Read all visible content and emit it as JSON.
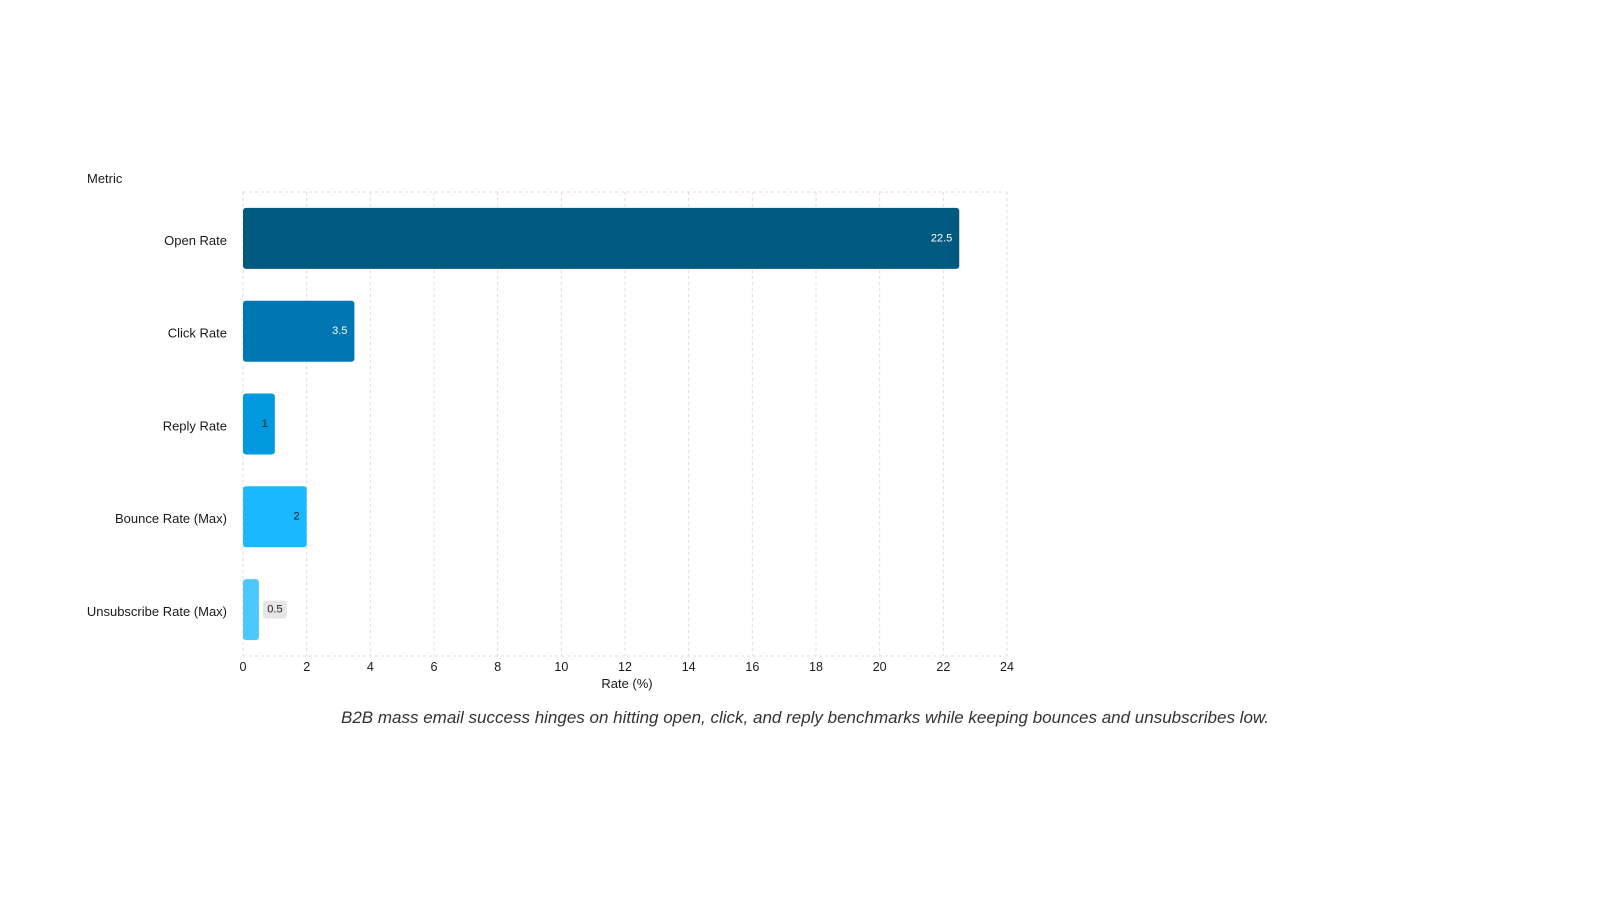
{
  "chart_data": {
    "type": "bar",
    "orientation": "horizontal",
    "categories": [
      "Open Rate",
      "Click Rate",
      "Reply Rate",
      "Bounce Rate (Max)",
      "Unsubscribe Rate (Max)"
    ],
    "values": [
      22.5,
      3.5,
      1,
      2,
      0.5
    ],
    "value_labels": [
      "22.5",
      "3.5",
      "1",
      "2",
      "0.5"
    ],
    "bar_colors": [
      "#005a80",
      "#0077b3",
      "#0099dd",
      "#1ab8ff",
      "#4dc8ff"
    ],
    "label_colors": [
      "#ffffff",
      "#ffffff",
      "#1a1a1a",
      "#1a1a1a",
      "#1a1a1a"
    ],
    "xlabel": "Rate (%)",
    "ylabel": "Metric",
    "xlim": [
      0,
      24
    ],
    "xticks": [
      0,
      2,
      4,
      6,
      8,
      10,
      12,
      14,
      16,
      18,
      20,
      22,
      24
    ],
    "grid": true,
    "caption": "B2B mass email success hinges on hitting open, click, and reply benchmarks while keeping bounces and unsubscribes low."
  }
}
